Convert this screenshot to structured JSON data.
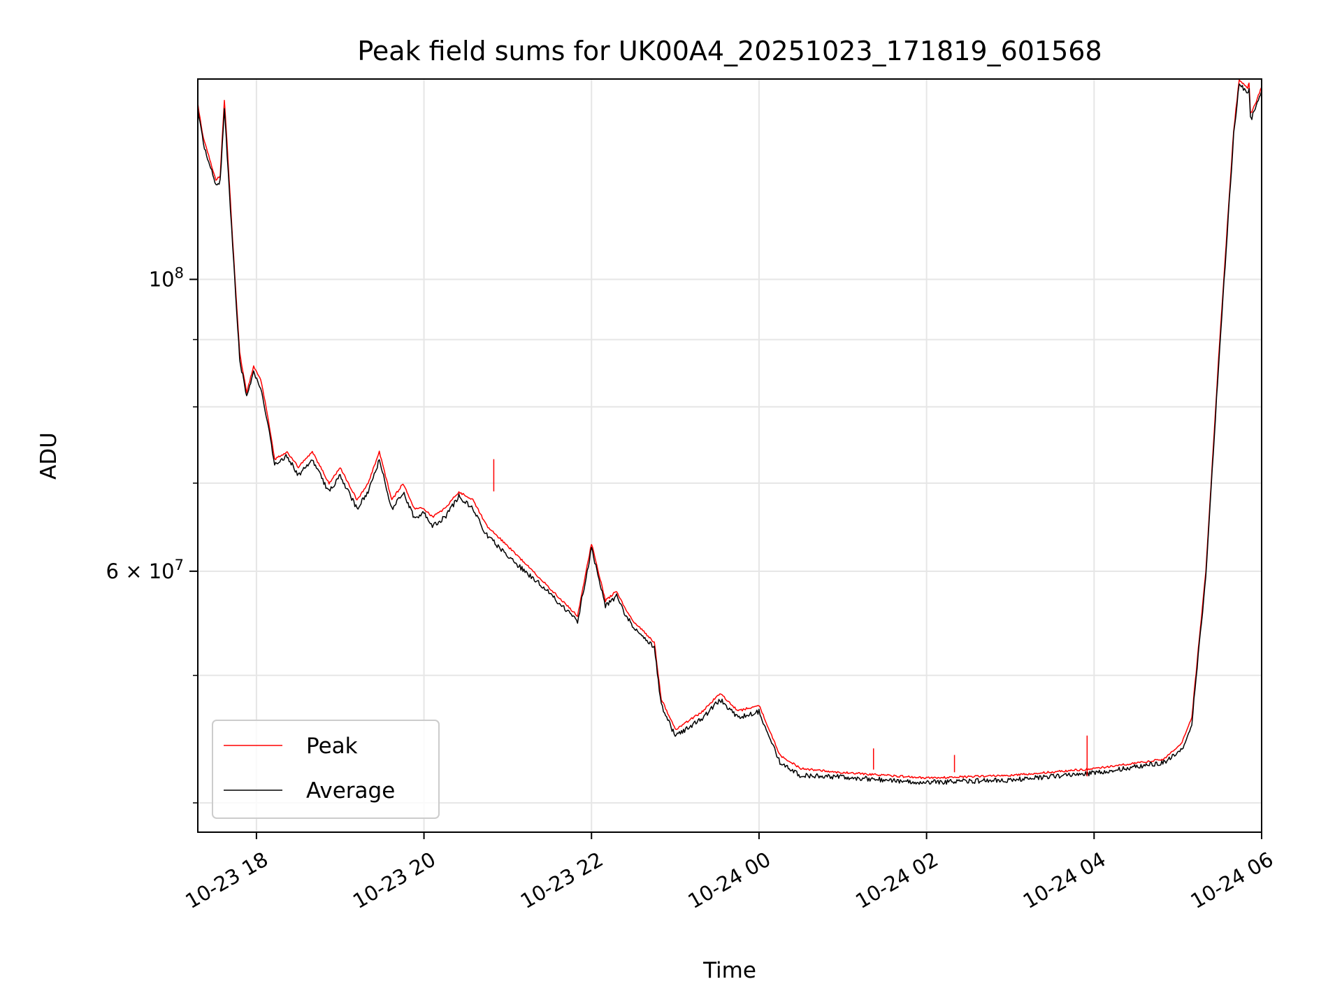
{
  "chart_data": {
    "type": "line",
    "title": "Peak field sums for UK00A4_20251023_171819_601568",
    "xlabel": "Time",
    "ylabel": "ADU",
    "yscale": "log",
    "grid": true,
    "legend_position": "lower-left",
    "xlim": [
      "2025-10-23 17:18",
      "2025-10-24 06:00"
    ],
    "ylim": [
      38000000,
      142000000
    ],
    "x_ticks": [
      "10-23 18",
      "10-23 20",
      "10-23 22",
      "10-24 00",
      "10-24 02",
      "10-24 04",
      "10-24 06"
    ],
    "y_tick_labels": [
      {
        "value": 100000000,
        "base": "10",
        "exp": "8"
      },
      {
        "value": 60000000,
        "coef": "6",
        "base": "10",
        "exp": "7"
      }
    ],
    "y_minor_ticks": [
      40000000,
      50000000,
      70000000,
      80000000,
      90000000
    ],
    "series": [
      {
        "name": "Peak",
        "color": "#ff0000",
        "x": [
          "2025-10-23 17:18",
          "2025-10-23 17:22",
          "2025-10-23 17:28",
          "2025-10-23 17:31",
          "2025-10-23 17:34",
          "2025-10-23 17:37",
          "2025-10-23 17:39",
          "2025-10-23 17:43",
          "2025-10-23 17:48",
          "2025-10-23 17:53",
          "2025-10-23 17:58",
          "2025-10-23 18:03",
          "2025-10-23 18:07",
          "2025-10-23 18:13",
          "2025-10-23 18:22",
          "2025-10-23 18:30",
          "2025-10-23 18:40",
          "2025-10-23 18:52",
          "2025-10-23 19:00",
          "2025-10-23 19:12",
          "2025-10-23 19:20",
          "2025-10-23 19:28",
          "2025-10-23 19:37",
          "2025-10-23 19:45",
          "2025-10-23 19:53",
          "2025-10-23 20:00",
          "2025-10-23 20:06",
          "2025-10-23 20:15",
          "2025-10-23 20:25",
          "2025-10-23 20:35",
          "2025-10-23 20:45",
          "2025-10-23 21:05",
          "2025-10-23 21:25",
          "2025-10-23 21:50",
          "2025-10-23 22:00",
          "2025-10-23 22:10",
          "2025-10-23 22:18",
          "2025-10-23 22:25",
          "2025-10-23 22:30",
          "2025-10-23 22:45",
          "2025-10-23 22:50",
          "2025-10-23 23:00",
          "2025-10-23 23:20",
          "2025-10-23 23:32",
          "2025-10-23 23:45",
          "2025-10-24 00:00",
          "2025-10-24 00:15",
          "2025-10-24 00:30",
          "2025-10-24 00:40",
          "2025-10-24 01:00",
          "2025-10-24 02:00",
          "2025-10-24 03:00",
          "2025-10-24 04:00",
          "2025-10-24 04:50",
          "2025-10-24 05:03",
          "2025-10-24 05:10",
          "2025-10-24 05:20",
          "2025-10-24 05:30",
          "2025-10-24 05:40",
          "2025-10-24 05:44",
          "2025-10-24 05:50",
          "2025-10-24 05:51",
          "2025-10-24 05:52",
          "2025-10-24 05:53",
          "2025-10-24 06:00"
        ],
        "values": [
          136000000,
          128000000,
          122000000,
          119000000,
          120000000,
          137000000,
          127000000,
          107000000,
          88000000,
          82000000,
          86000000,
          84000000,
          80000000,
          73000000,
          74000000,
          72000000,
          74000000,
          70000000,
          72000000,
          68000000,
          70000000,
          74000000,
          68000000,
          70000000,
          67000000,
          67000000,
          66000000,
          67000000,
          69000000,
          68000000,
          65000000,
          62000000,
          59000000,
          55500000,
          63000000,
          57000000,
          58000000,
          56000000,
          55000000,
          53000000,
          48000000,
          45500000,
          47000000,
          48500000,
          47000000,
          47500000,
          43500000,
          42500000,
          42400000,
          42200000,
          41800000,
          42000000,
          42500000,
          43200000,
          44500000,
          46500000,
          60000000,
          90000000,
          130000000,
          142000000,
          140000000,
          141000000,
          134000000,
          134000000,
          140000000
        ]
      },
      {
        "name": "Average",
        "color": "#000000",
        "x": [
          "2025-10-23 17:18",
          "2025-10-23 17:22",
          "2025-10-23 17:28",
          "2025-10-23 17:31",
          "2025-10-23 17:34",
          "2025-10-23 17:37",
          "2025-10-23 17:39",
          "2025-10-23 17:43",
          "2025-10-23 17:48",
          "2025-10-23 17:53",
          "2025-10-23 17:58",
          "2025-10-23 18:03",
          "2025-10-23 18:07",
          "2025-10-23 18:13",
          "2025-10-23 18:22",
          "2025-10-23 18:30",
          "2025-10-23 18:40",
          "2025-10-23 18:52",
          "2025-10-23 19:00",
          "2025-10-23 19:12",
          "2025-10-23 19:20",
          "2025-10-23 19:28",
          "2025-10-23 19:37",
          "2025-10-23 19:45",
          "2025-10-23 19:53",
          "2025-10-23 20:00",
          "2025-10-23 20:06",
          "2025-10-23 20:15",
          "2025-10-23 20:25",
          "2025-10-23 20:35",
          "2025-10-23 20:45",
          "2025-10-23 21:05",
          "2025-10-23 21:25",
          "2025-10-23 21:50",
          "2025-10-23 22:00",
          "2025-10-23 22:10",
          "2025-10-23 22:18",
          "2025-10-23 22:25",
          "2025-10-23 22:30",
          "2025-10-23 22:45",
          "2025-10-23 22:50",
          "2025-10-23 23:00",
          "2025-10-23 23:20",
          "2025-10-23 23:32",
          "2025-10-23 23:45",
          "2025-10-24 00:00",
          "2025-10-24 00:15",
          "2025-10-24 00:30",
          "2025-10-24 00:40",
          "2025-10-24 01:00",
          "2025-10-24 02:00",
          "2025-10-24 03:00",
          "2025-10-24 04:00",
          "2025-10-24 04:50",
          "2025-10-24 05:03",
          "2025-10-24 05:10",
          "2025-10-24 05:20",
          "2025-10-24 05:30",
          "2025-10-24 05:40",
          "2025-10-24 05:44",
          "2025-10-24 05:50",
          "2025-10-24 05:51",
          "2025-10-24 05:52",
          "2025-10-24 05:53",
          "2025-10-24 06:00"
        ],
        "values": [
          135000000,
          127000000,
          121000000,
          118000000,
          119000000,
          135000000,
          125000000,
          106000000,
          87000000,
          81500000,
          85000000,
          83000000,
          79000000,
          72500000,
          73500000,
          71000000,
          73000000,
          69000000,
          71000000,
          67000000,
          69000000,
          73000000,
          67000000,
          69000000,
          66000000,
          66500000,
          65000000,
          66000000,
          68500000,
          67000000,
          64000000,
          61000000,
          58500000,
          55000000,
          62500000,
          56500000,
          57500000,
          55500000,
          54500000,
          52500000,
          47500000,
          45000000,
          46500000,
          48000000,
          46500000,
          47000000,
          43000000,
          42000000,
          42000000,
          41900000,
          41500000,
          41700000,
          42200000,
          43000000,
          44000000,
          46000000,
          59500000,
          89000000,
          129000000,
          141000000,
          139000000,
          140000000,
          133000000,
          133000000,
          139000000
        ]
      }
    ]
  }
}
